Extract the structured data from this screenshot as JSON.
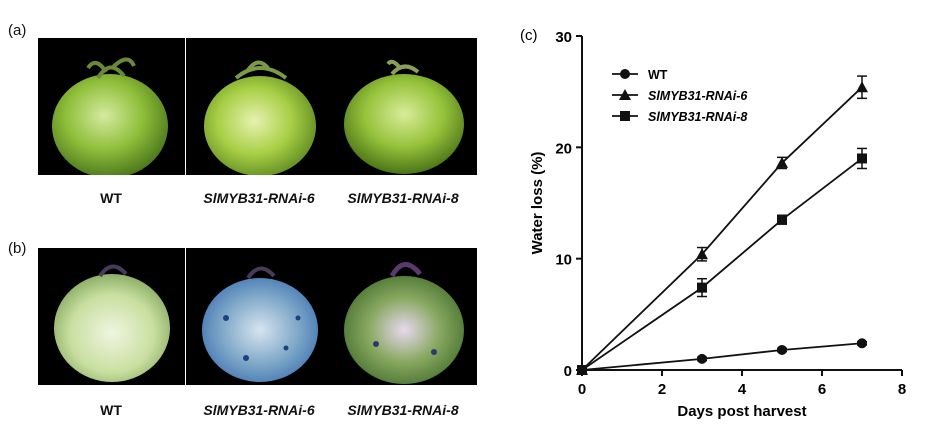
{
  "panels": {
    "a_label": "(a)",
    "b_label": "(b)",
    "c_label": "(c)"
  },
  "row_a": {
    "captions": [
      "WT",
      "SlMYB31-RNAi-6",
      "SlMYB31-RNAi-8"
    ]
  },
  "row_b": {
    "captions": [
      "WT",
      "SlMYB31-RNAi-6",
      "SlMYB31-RNAi-8"
    ]
  },
  "colors": {
    "photo_background": "#000000",
    "fruit_green": "#8fbf3a",
    "fruit_pale": "#d8e8b8",
    "stain_blue": "#3a6fb0",
    "series_marker": "#111111"
  },
  "chart_data": {
    "type": "line",
    "xlabel": "Days post harvest",
    "ylabel": "Water loss (%)",
    "xlim": [
      0,
      8
    ],
    "ylim": [
      0,
      30
    ],
    "xticks": [
      0,
      2,
      4,
      6,
      8
    ],
    "yticks": [
      0,
      10,
      20,
      30
    ],
    "legend_position": "top-left",
    "grid": false,
    "series": [
      {
        "name": "WT",
        "marker": "circle",
        "x": [
          0,
          3,
          5,
          7
        ],
        "y": [
          0,
          1.0,
          1.8,
          2.4
        ],
        "err": [
          0,
          0.15,
          0.15,
          0.15
        ]
      },
      {
        "name": "SlMYB31-RNAi-6",
        "marker": "triangle",
        "x": [
          0,
          3,
          5,
          7
        ],
        "y": [
          0,
          10.4,
          18.6,
          25.4
        ],
        "err": [
          0,
          0.6,
          0.5,
          1.0
        ]
      },
      {
        "name": "SlMYB31-RNAi-8",
        "marker": "square",
        "x": [
          0,
          3,
          5,
          7
        ],
        "y": [
          0,
          7.4,
          13.5,
          19.0
        ],
        "err": [
          0,
          0.8,
          0.4,
          0.9
        ]
      }
    ]
  }
}
